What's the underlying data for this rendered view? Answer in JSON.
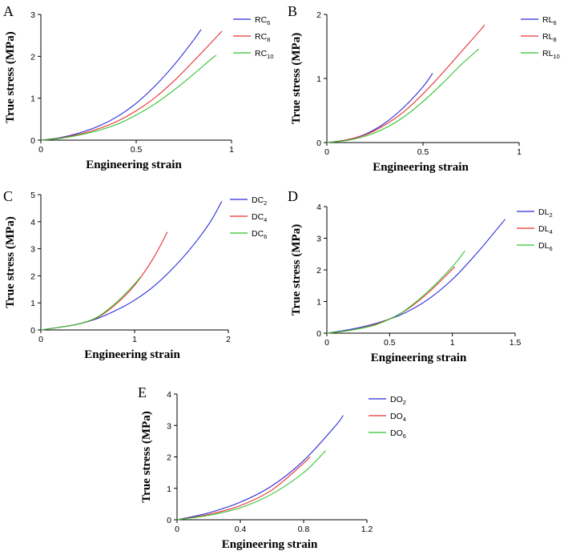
{
  "chart_data": [
    {
      "panel": "A",
      "type": "line",
      "xlabel": "Engineering strain",
      "ylabel": "True stress (MPa)",
      "xlim": [
        0,
        1
      ],
      "ylim": [
        0,
        3
      ],
      "xticks": [
        0,
        0.5,
        1
      ],
      "xtick_labels": [
        "0",
        "0.5",
        "1"
      ],
      "yticks": [
        0,
        1,
        2,
        3
      ],
      "ytick_labels": [
        "0",
        "1",
        "2",
        "3"
      ],
      "legend_position": "top-right",
      "series": [
        {
          "name": "RC6",
          "base": "RC",
          "sub": "6",
          "color": "#2b2bd9",
          "x": [
            0,
            0.1,
            0.2,
            0.3,
            0.4,
            0.5,
            0.6,
            0.7,
            0.8,
            0.84
          ],
          "y": [
            0,
            0.06,
            0.17,
            0.33,
            0.56,
            0.88,
            1.3,
            1.8,
            2.38,
            2.64
          ]
        },
        {
          "name": "RC8",
          "base": "RC",
          "sub": "8",
          "color": "#e83030",
          "x": [
            0,
            0.1,
            0.2,
            0.3,
            0.4,
            0.5,
            0.6,
            0.7,
            0.8,
            0.9,
            0.95
          ],
          "y": [
            0,
            0.05,
            0.14,
            0.27,
            0.45,
            0.7,
            1.02,
            1.42,
            1.88,
            2.36,
            2.6
          ]
        },
        {
          "name": "RC10",
          "base": "RC",
          "sub": "10",
          "color": "#2fc42f",
          "x": [
            0,
            0.1,
            0.2,
            0.3,
            0.4,
            0.5,
            0.6,
            0.7,
            0.8,
            0.9,
            0.92
          ],
          "y": [
            0,
            0.04,
            0.12,
            0.23,
            0.38,
            0.6,
            0.87,
            1.2,
            1.57,
            1.96,
            2.02
          ]
        }
      ]
    },
    {
      "panel": "B",
      "type": "line",
      "xlabel": "Engineering strain",
      "ylabel": "True stress (MPa)",
      "xlim": [
        0,
        1
      ],
      "ylim": [
        0,
        2
      ],
      "xticks": [
        0,
        0.5,
        1
      ],
      "xtick_labels": [
        "0",
        "0.5",
        "1"
      ],
      "yticks": [
        0,
        1,
        2
      ],
      "ytick_labels": [
        "0",
        "1",
        "2"
      ],
      "legend_position": "top-right",
      "series": [
        {
          "name": "RL6",
          "base": "RL",
          "sub": "6",
          "color": "#2b2bd9",
          "x": [
            0,
            0.1,
            0.2,
            0.3,
            0.4,
            0.5,
            0.55
          ],
          "y": [
            0,
            0.04,
            0.13,
            0.3,
            0.55,
            0.87,
            1.08
          ]
        },
        {
          "name": "RL8",
          "base": "RL",
          "sub": "8",
          "color": "#e83030",
          "x": [
            0,
            0.1,
            0.2,
            0.3,
            0.4,
            0.5,
            0.6,
            0.7,
            0.8,
            0.82
          ],
          "y": [
            0,
            0.04,
            0.12,
            0.27,
            0.48,
            0.76,
            1.08,
            1.42,
            1.76,
            1.84
          ]
        },
        {
          "name": "RL10",
          "base": "RL",
          "sub": "10",
          "color": "#2fc42f",
          "x": [
            0,
            0.1,
            0.2,
            0.3,
            0.4,
            0.5,
            0.6,
            0.7,
            0.79
          ],
          "y": [
            0,
            0.03,
            0.1,
            0.22,
            0.4,
            0.64,
            0.92,
            1.22,
            1.46
          ]
        }
      ]
    },
    {
      "panel": "C",
      "type": "line",
      "xlabel": "Engineering strain",
      "ylabel": "True stress (MPa)",
      "xlim": [
        0,
        2
      ],
      "ylim": [
        0,
        5
      ],
      "xticks": [
        0,
        1,
        2
      ],
      "xtick_labels": [
        "0",
        "1",
        "2"
      ],
      "yticks": [
        0,
        1,
        2,
        3,
        4,
        5
      ],
      "ytick_labels": [
        "0",
        "1",
        "2",
        "3",
        "4",
        "5"
      ],
      "legend_position": "top-right",
      "series": [
        {
          "name": "DC2",
          "base": "DC",
          "sub": "2",
          "color": "#2b2bd9",
          "x": [
            0,
            0.2,
            0.4,
            0.6,
            0.8,
            1.0,
            1.2,
            1.4,
            1.6,
            1.8,
            1.93
          ],
          "y": [
            0,
            0.1,
            0.22,
            0.42,
            0.72,
            1.1,
            1.6,
            2.25,
            3.02,
            3.95,
            4.75
          ]
        },
        {
          "name": "DC4",
          "base": "DC",
          "sub": "4",
          "color": "#e83030",
          "x": [
            0,
            0.2,
            0.4,
            0.6,
            0.8,
            1.0,
            1.2,
            1.35
          ],
          "y": [
            0,
            0.1,
            0.22,
            0.45,
            0.95,
            1.65,
            2.65,
            3.62
          ]
        },
        {
          "name": "DC6",
          "base": "DC",
          "sub": "6",
          "color": "#2fc42f",
          "x": [
            0,
            0.2,
            0.4,
            0.6,
            0.8,
            1.0,
            1.06
          ],
          "y": [
            0,
            0.1,
            0.22,
            0.47,
            1.0,
            1.7,
            1.95
          ]
        }
      ]
    },
    {
      "panel": "D",
      "type": "line",
      "xlabel": "Engineering strain",
      "ylabel": "True stress (MPa)",
      "xlim": [
        0,
        1.5
      ],
      "ylim": [
        0,
        4
      ],
      "xticks": [
        0,
        0.5,
        1,
        1.5
      ],
      "xtick_labels": [
        "0",
        "0.5",
        "1",
        "1.5"
      ],
      "yticks": [
        0,
        1,
        2,
        3,
        4
      ],
      "ytick_labels": [
        "0",
        "1",
        "2",
        "3",
        "4"
      ],
      "legend_position": "top-right",
      "series": [
        {
          "name": "DL2",
          "base": "DL",
          "sub": "2",
          "color": "#2b2bd9",
          "x": [
            0,
            0.2,
            0.4,
            0.6,
            0.8,
            1.0,
            1.2,
            1.42
          ],
          "y": [
            0,
            0.13,
            0.32,
            0.6,
            1.05,
            1.7,
            2.55,
            3.6
          ]
        },
        {
          "name": "DL4",
          "base": "DL",
          "sub": "4",
          "color": "#e83030",
          "x": [
            0,
            0.2,
            0.4,
            0.6,
            0.8,
            1.02
          ],
          "y": [
            0,
            0.1,
            0.3,
            0.65,
            1.25,
            2.1
          ]
        },
        {
          "name": "DL6",
          "base": "DL",
          "sub": "6",
          "color": "#2fc42f",
          "x": [
            0,
            0.2,
            0.4,
            0.6,
            0.8,
            1.0,
            1.1
          ],
          "y": [
            0,
            0.1,
            0.28,
            0.66,
            1.3,
            2.1,
            2.6
          ]
        }
      ]
    },
    {
      "panel": "E",
      "type": "line",
      "xlabel": "Engineering strain",
      "ylabel": "True stress (MPa)",
      "xlim": [
        0,
        1.2
      ],
      "ylim": [
        0,
        4
      ],
      "xticks": [
        0,
        0.4,
        0.8,
        1.2
      ],
      "xtick_labels": [
        "0",
        "0.4",
        "0.8",
        "1.2"
      ],
      "yticks": [
        0,
        1,
        2,
        3,
        4
      ],
      "ytick_labels": [
        "0",
        "1",
        "2",
        "3",
        "4"
      ],
      "legend_position": "top-right",
      "series": [
        {
          "name": "DO2",
          "base": "DO",
          "sub": "2",
          "color": "#2b2bd9",
          "x": [
            0,
            0.2,
            0.4,
            0.6,
            0.8,
            1.0,
            1.05
          ],
          "y": [
            0,
            0.22,
            0.56,
            1.08,
            1.88,
            2.98,
            3.32
          ]
        },
        {
          "name": "DO4",
          "base": "DO",
          "sub": "4",
          "color": "#e83030",
          "x": [
            0,
            0.2,
            0.4,
            0.6,
            0.8,
            0.84
          ],
          "y": [
            0,
            0.17,
            0.45,
            0.95,
            1.8,
            2.0
          ]
        },
        {
          "name": "DO6",
          "base": "DO",
          "sub": "6",
          "color": "#2fc42f",
          "x": [
            0,
            0.2,
            0.4,
            0.6,
            0.8,
            0.94
          ],
          "y": [
            0,
            0.14,
            0.38,
            0.82,
            1.5,
            2.2
          ]
        }
      ]
    }
  ]
}
